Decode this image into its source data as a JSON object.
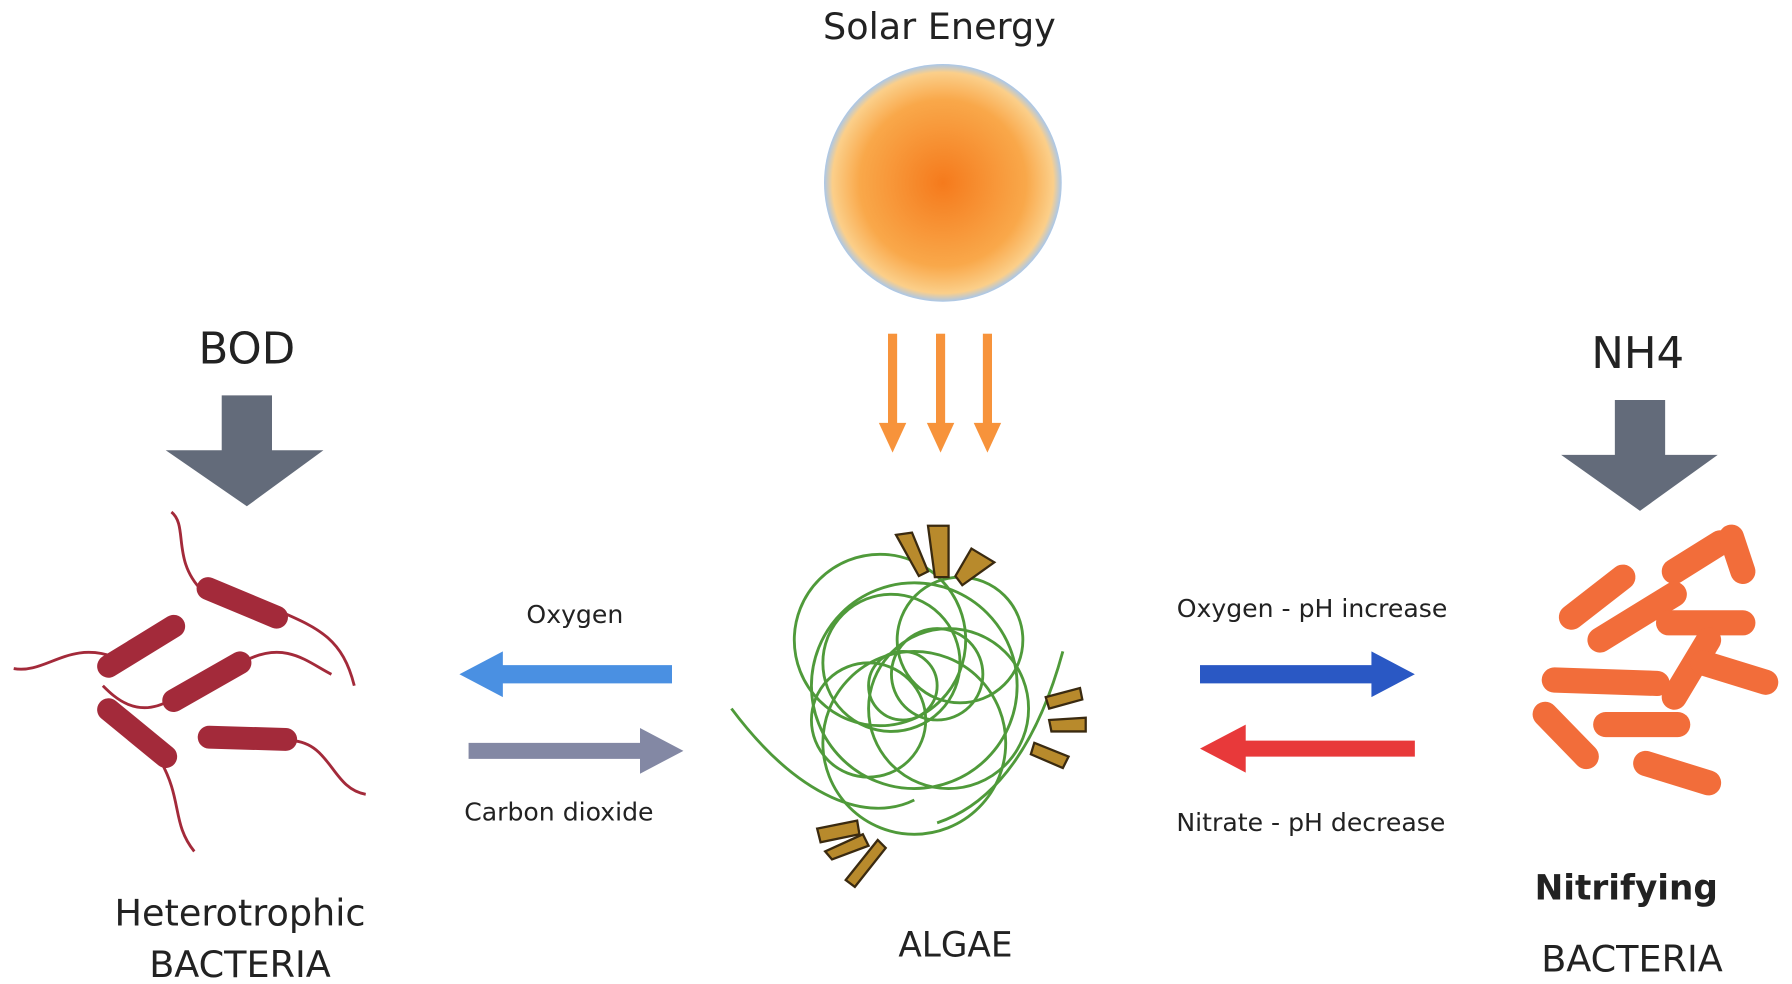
{
  "source": {
    "label": "Solar Energy"
  },
  "inputs": [
    {
      "label": "BOD"
    },
    {
      "label": "NH4"
    }
  ],
  "organisms": [
    {
      "label": "Heterotrophic",
      "sublabel": "BACTERIA"
    },
    {
      "label": "ALGAE"
    },
    {
      "label": "Nitrifying",
      "sublabel": "BACTERIA"
    }
  ],
  "exchanges": [
    {
      "label": "Oxygen"
    },
    {
      "label": "Carbon dioxide"
    },
    {
      "label": "Oxygen - pH increase"
    },
    {
      "label": "Nitrate - pH decrease"
    }
  ]
}
